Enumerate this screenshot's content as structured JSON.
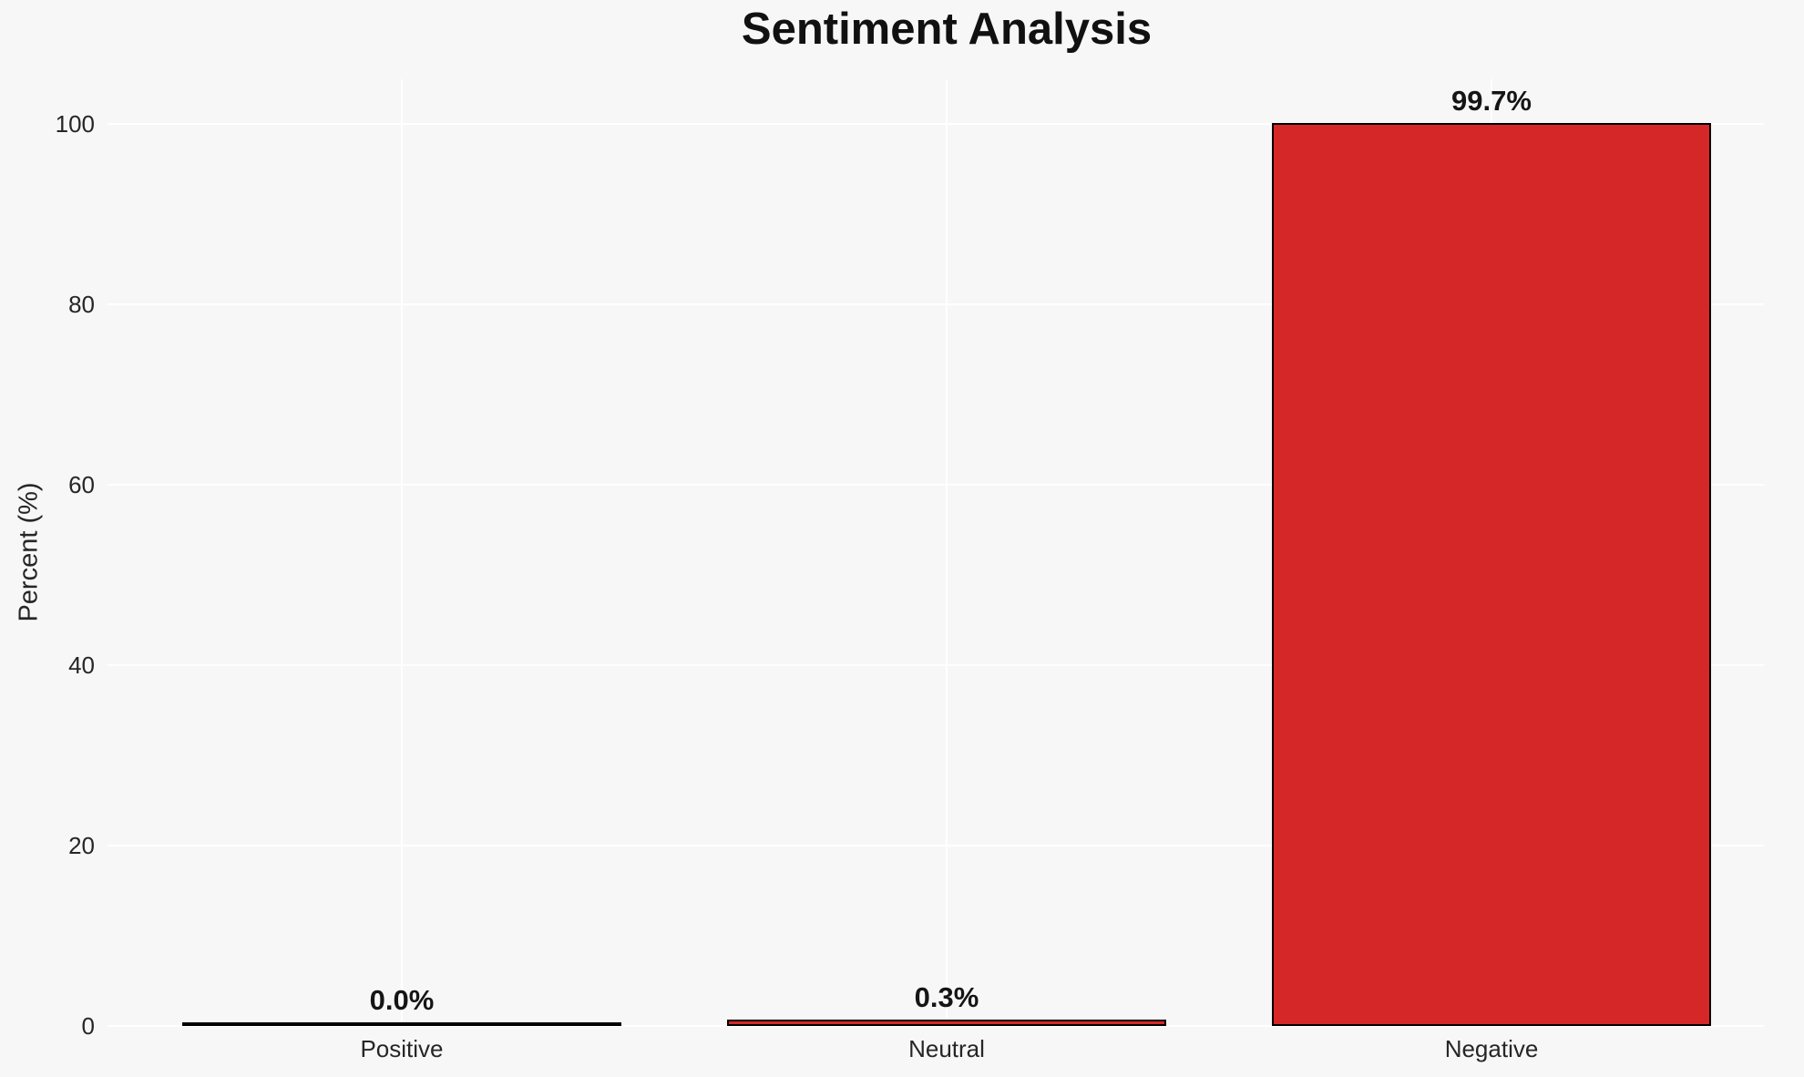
{
  "chart_data": {
    "type": "bar",
    "title": "Sentiment Analysis",
    "xlabel": "",
    "ylabel": "Percent (%)",
    "categories": [
      "Positive",
      "Neutral",
      "Negative"
    ],
    "values": [
      0.0,
      0.3,
      99.7
    ],
    "value_labels": [
      "0.0%",
      "0.3%",
      "99.7%"
    ],
    "yticks": [
      0,
      20,
      40,
      60,
      80,
      100
    ],
    "ylim": [
      0,
      105
    ],
    "legend": "none",
    "grid": "white horizontal gridlines at yticks and vertical gridlines at category centers",
    "bar_width_fraction": 0.8,
    "colors": {
      "background": "#f7f7f8",
      "gridline": "#ffffff",
      "bar_fill": "#d62728",
      "bar_edge": "#000000",
      "title_text": "#111111",
      "tick_text": "#262626",
      "value_label_text": "#151515"
    }
  }
}
